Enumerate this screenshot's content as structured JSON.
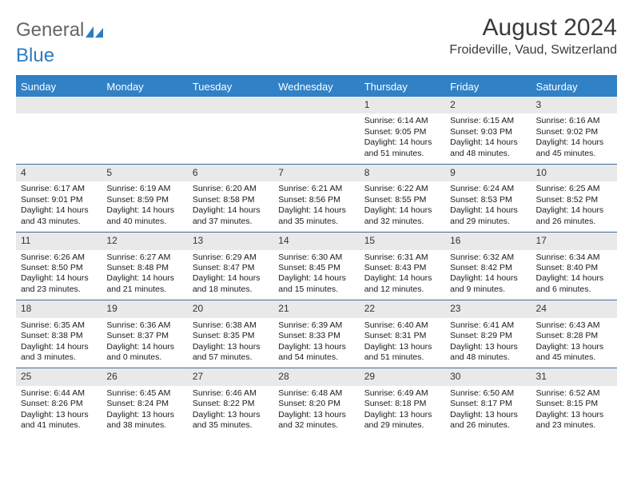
{
  "logo": {
    "part1": "General",
    "part2": "Blue"
  },
  "title": "August 2024",
  "subtitle": "Froideville, Vaud, Switzerland",
  "colors": {
    "header_bar": "#3181c6",
    "accent": "#2b7cc4",
    "week_divider": "#3c6a99",
    "daynum_bg": "#e9e9e9",
    "text": "#1a1a1a"
  },
  "dow": [
    "Sunday",
    "Monday",
    "Tuesday",
    "Wednesday",
    "Thursday",
    "Friday",
    "Saturday"
  ],
  "labels": {
    "sunrise": "Sunrise:",
    "sunset": "Sunset:",
    "daylight": "Daylight:"
  },
  "weeks": [
    [
      {
        "n": "",
        "empty": true
      },
      {
        "n": "",
        "empty": true
      },
      {
        "n": "",
        "empty": true
      },
      {
        "n": "",
        "empty": true
      },
      {
        "n": "1",
        "sr": "6:14 AM",
        "ss": "9:05 PM",
        "dl1": "14 hours",
        "dl2": "and 51 minutes."
      },
      {
        "n": "2",
        "sr": "6:15 AM",
        "ss": "9:03 PM",
        "dl1": "14 hours",
        "dl2": "and 48 minutes."
      },
      {
        "n": "3",
        "sr": "6:16 AM",
        "ss": "9:02 PM",
        "dl1": "14 hours",
        "dl2": "and 45 minutes."
      }
    ],
    [
      {
        "n": "4",
        "sr": "6:17 AM",
        "ss": "9:01 PM",
        "dl1": "14 hours",
        "dl2": "and 43 minutes."
      },
      {
        "n": "5",
        "sr": "6:19 AM",
        "ss": "8:59 PM",
        "dl1": "14 hours",
        "dl2": "and 40 minutes."
      },
      {
        "n": "6",
        "sr": "6:20 AM",
        "ss": "8:58 PM",
        "dl1": "14 hours",
        "dl2": "and 37 minutes."
      },
      {
        "n": "7",
        "sr": "6:21 AM",
        "ss": "8:56 PM",
        "dl1": "14 hours",
        "dl2": "and 35 minutes."
      },
      {
        "n": "8",
        "sr": "6:22 AM",
        "ss": "8:55 PM",
        "dl1": "14 hours",
        "dl2": "and 32 minutes."
      },
      {
        "n": "9",
        "sr": "6:24 AM",
        "ss": "8:53 PM",
        "dl1": "14 hours",
        "dl2": "and 29 minutes."
      },
      {
        "n": "10",
        "sr": "6:25 AM",
        "ss": "8:52 PM",
        "dl1": "14 hours",
        "dl2": "and 26 minutes."
      }
    ],
    [
      {
        "n": "11",
        "sr": "6:26 AM",
        "ss": "8:50 PM",
        "dl1": "14 hours",
        "dl2": "and 23 minutes."
      },
      {
        "n": "12",
        "sr": "6:27 AM",
        "ss": "8:48 PM",
        "dl1": "14 hours",
        "dl2": "and 21 minutes."
      },
      {
        "n": "13",
        "sr": "6:29 AM",
        "ss": "8:47 PM",
        "dl1": "14 hours",
        "dl2": "and 18 minutes."
      },
      {
        "n": "14",
        "sr": "6:30 AM",
        "ss": "8:45 PM",
        "dl1": "14 hours",
        "dl2": "and 15 minutes."
      },
      {
        "n": "15",
        "sr": "6:31 AM",
        "ss": "8:43 PM",
        "dl1": "14 hours",
        "dl2": "and 12 minutes."
      },
      {
        "n": "16",
        "sr": "6:32 AM",
        "ss": "8:42 PM",
        "dl1": "14 hours",
        "dl2": "and 9 minutes."
      },
      {
        "n": "17",
        "sr": "6:34 AM",
        "ss": "8:40 PM",
        "dl1": "14 hours",
        "dl2": "and 6 minutes."
      }
    ],
    [
      {
        "n": "18",
        "sr": "6:35 AM",
        "ss": "8:38 PM",
        "dl1": "14 hours",
        "dl2": "and 3 minutes."
      },
      {
        "n": "19",
        "sr": "6:36 AM",
        "ss": "8:37 PM",
        "dl1": "14 hours",
        "dl2": "and 0 minutes."
      },
      {
        "n": "20",
        "sr": "6:38 AM",
        "ss": "8:35 PM",
        "dl1": "13 hours",
        "dl2": "and 57 minutes."
      },
      {
        "n": "21",
        "sr": "6:39 AM",
        "ss": "8:33 PM",
        "dl1": "13 hours",
        "dl2": "and 54 minutes."
      },
      {
        "n": "22",
        "sr": "6:40 AM",
        "ss": "8:31 PM",
        "dl1": "13 hours",
        "dl2": "and 51 minutes."
      },
      {
        "n": "23",
        "sr": "6:41 AM",
        "ss": "8:29 PM",
        "dl1": "13 hours",
        "dl2": "and 48 minutes."
      },
      {
        "n": "24",
        "sr": "6:43 AM",
        "ss": "8:28 PM",
        "dl1": "13 hours",
        "dl2": "and 45 minutes."
      }
    ],
    [
      {
        "n": "25",
        "sr": "6:44 AM",
        "ss": "8:26 PM",
        "dl1": "13 hours",
        "dl2": "and 41 minutes."
      },
      {
        "n": "26",
        "sr": "6:45 AM",
        "ss": "8:24 PM",
        "dl1": "13 hours",
        "dl2": "and 38 minutes."
      },
      {
        "n": "27",
        "sr": "6:46 AM",
        "ss": "8:22 PM",
        "dl1": "13 hours",
        "dl2": "and 35 minutes."
      },
      {
        "n": "28",
        "sr": "6:48 AM",
        "ss": "8:20 PM",
        "dl1": "13 hours",
        "dl2": "and 32 minutes."
      },
      {
        "n": "29",
        "sr": "6:49 AM",
        "ss": "8:18 PM",
        "dl1": "13 hours",
        "dl2": "and 29 minutes."
      },
      {
        "n": "30",
        "sr": "6:50 AM",
        "ss": "8:17 PM",
        "dl1": "13 hours",
        "dl2": "and 26 minutes."
      },
      {
        "n": "31",
        "sr": "6:52 AM",
        "ss": "8:15 PM",
        "dl1": "13 hours",
        "dl2": "and 23 minutes."
      }
    ]
  ]
}
